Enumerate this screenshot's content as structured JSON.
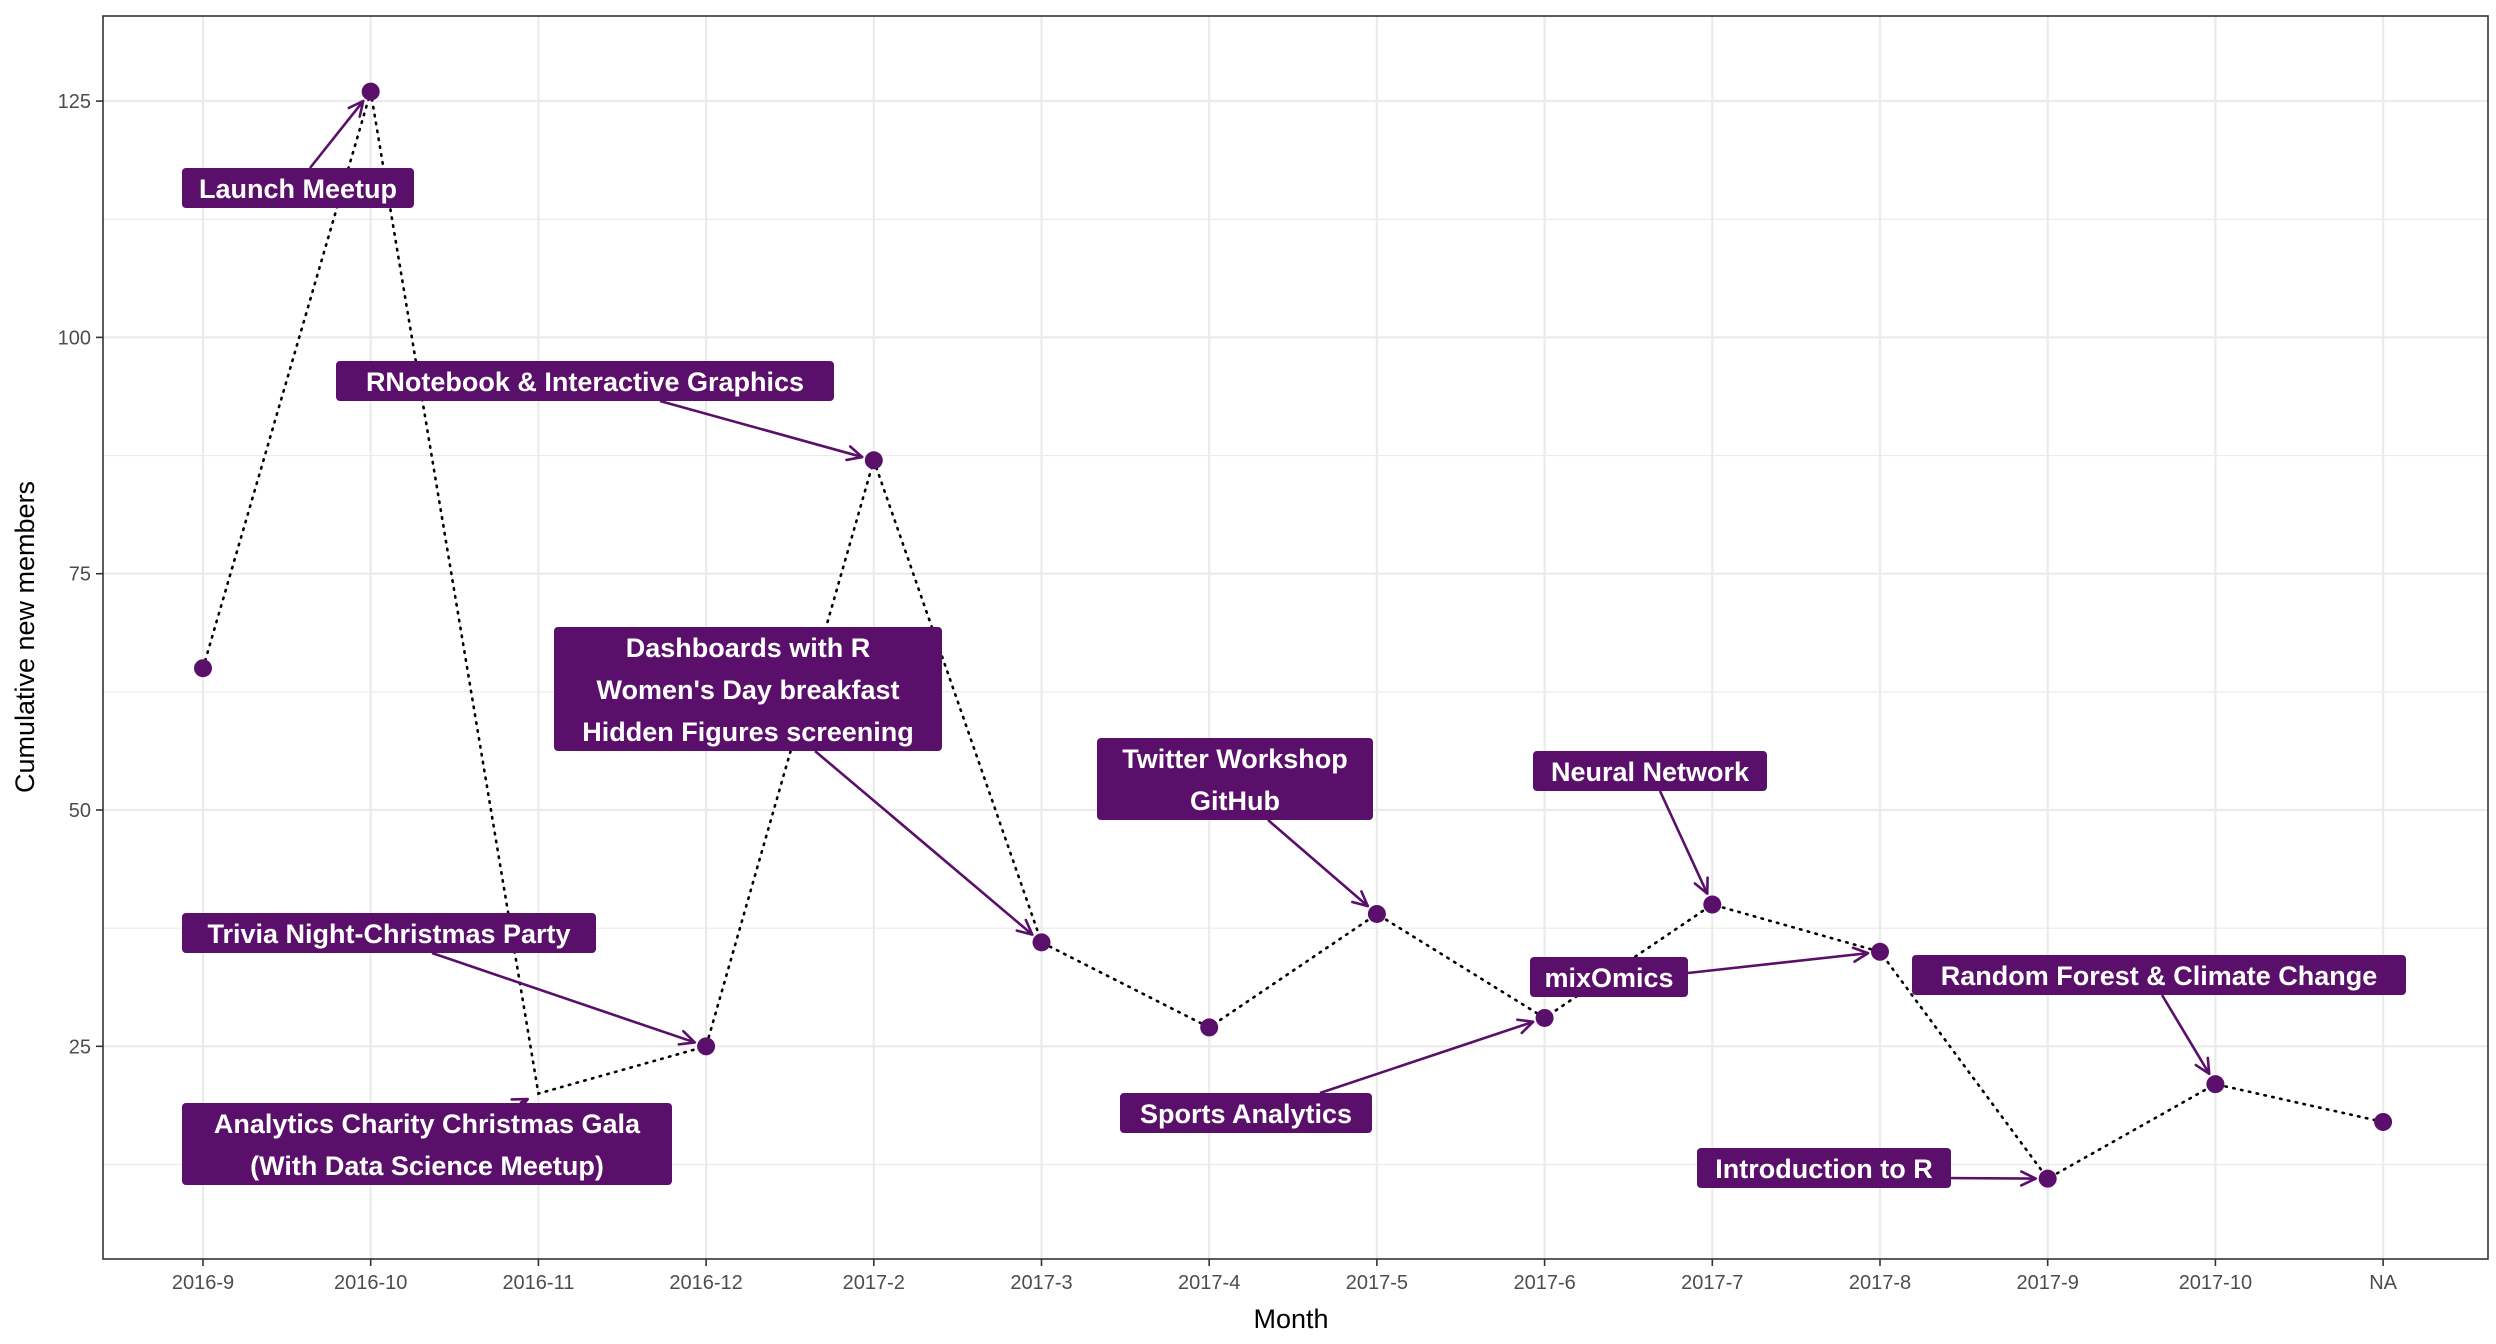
{
  "chart_data": {
    "type": "line",
    "xlabel": "Month",
    "ylabel": "Cumulative new members",
    "categories": [
      "2016-9",
      "2016-10",
      "2016-11",
      "2016-12",
      "2017-2",
      "2017-3",
      "2017-4",
      "2017-5",
      "2017-6",
      "2017-7",
      "2017-8",
      "2017-9",
      "2017-10",
      "NA"
    ],
    "series": [
      {
        "values": [
          65,
          126,
          20,
          25,
          87,
          36,
          27,
          39,
          28,
          40,
          35,
          11,
          21,
          17
        ]
      }
    ],
    "point_shown": [
      true,
      true,
      false,
      true,
      true,
      true,
      true,
      true,
      true,
      true,
      true,
      true,
      true,
      true
    ],
    "ylim": [
      2.5,
      134
    ],
    "yticks": [
      25,
      50,
      75,
      100,
      125
    ],
    "grid": true,
    "line_style": "dotted",
    "colors": {
      "point": "#5a0f6a",
      "label_fill": "#5a0f6a",
      "label_text": "#ffffff",
      "line": "#000000",
      "grid": "#ebebeb"
    },
    "annotations": [
      {
        "lines": [
          "Launch Meetup"
        ],
        "target": 1
      },
      {
        "lines": [
          "RNotebook & Interactive Graphics"
        ],
        "target": 4
      },
      {
        "lines": [
          "Dashboards with R",
          "Women's Day breakfast",
          "Hidden Figures screening"
        ],
        "target": 5
      },
      {
        "lines": [
          "Twitter Workshop",
          "GitHub"
        ],
        "target": 7
      },
      {
        "lines": [
          "Neural Network"
        ],
        "target": 9
      },
      {
        "lines": [
          "Trivia Night-Christmas Party"
        ],
        "target": 3
      },
      {
        "lines": [
          "mixOmics"
        ],
        "target": 10
      },
      {
        "lines": [
          "Random Forest & Climate Change"
        ],
        "target": 12
      },
      {
        "lines": [
          "Sports Analytics"
        ],
        "target": 8
      },
      {
        "lines": [
          "Analytics Charity Christmas Gala",
          "(With Data Science Meetup)"
        ],
        "target": 2
      },
      {
        "lines": [
          "Introduction to R"
        ],
        "target": 11
      }
    ]
  }
}
